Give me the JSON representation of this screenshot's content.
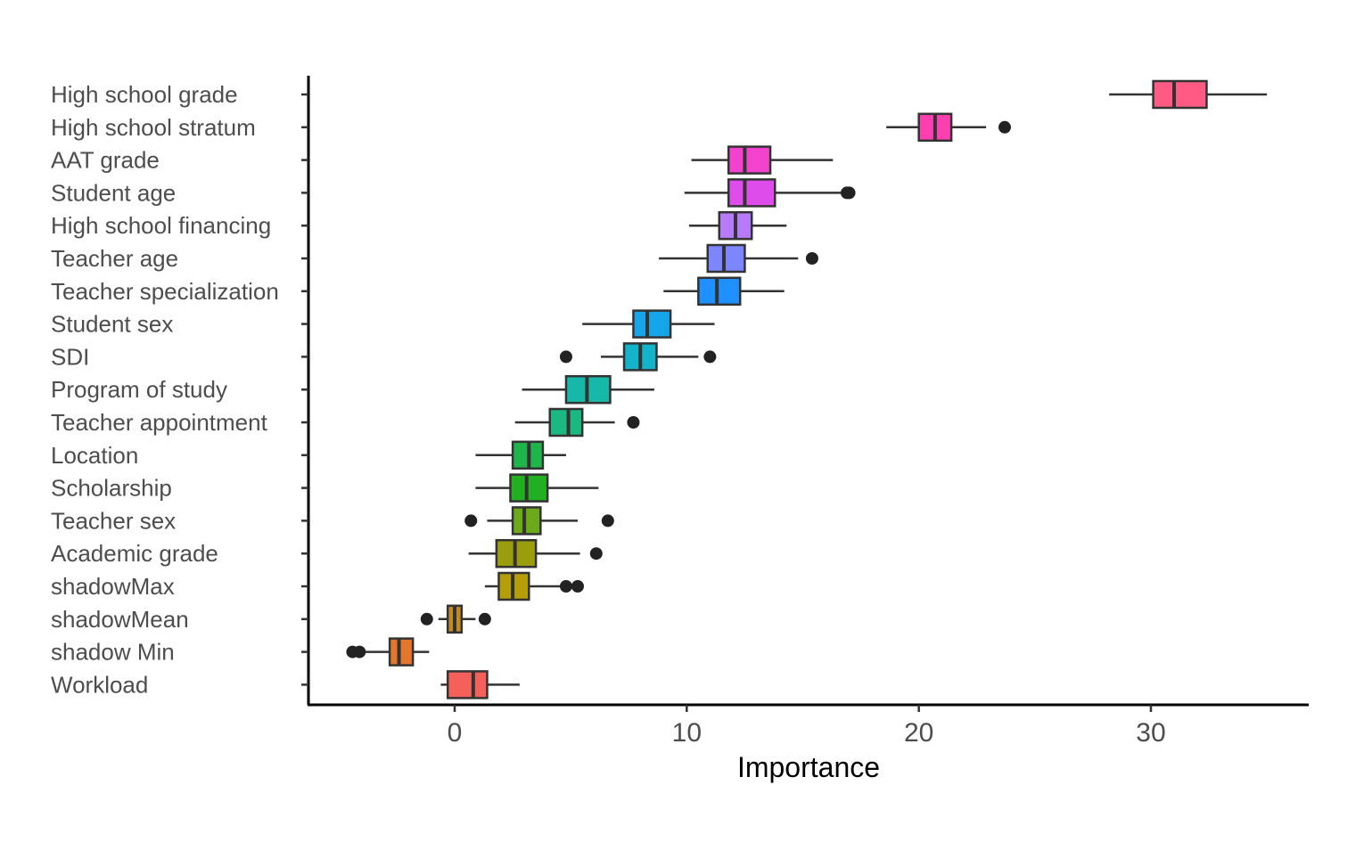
{
  "chart_data": {
    "type": "boxplot",
    "title": "",
    "xlabel": "Importance",
    "ylabel": "",
    "xlim": [
      -6.3,
      36.8
    ],
    "xticks": [
      0,
      10,
      20,
      30
    ],
    "xtick_labels": [
      "0",
      "10",
      "20",
      "30"
    ],
    "grid": false,
    "legend": "none",
    "categories": [
      "High school grade",
      "High school stratum",
      "AAT grade",
      "Student age",
      "High school financing",
      "Teacher age",
      "Teacher specialization",
      "Student sex",
      "SDI",
      "Program of study",
      "Teacher appointment",
      "Location",
      "Scholarship",
      "Teacher sex",
      "Academic grade",
      "shadowMax",
      "shadowMean",
      "shadow Min",
      "Workload"
    ],
    "boxes": [
      {
        "category": "High school grade",
        "whisker_low": 28.2,
        "q1": 30.1,
        "median": 31.0,
        "q3": 32.4,
        "whisker_high": 35.0,
        "outliers": [],
        "color": "#FF5A84"
      },
      {
        "category": "High school stratum",
        "whisker_low": 18.6,
        "q1": 20.0,
        "median": 20.7,
        "q3": 21.4,
        "whisker_high": 22.9,
        "outliers": [
          23.7
        ],
        "color": "#FF3FB0"
      },
      {
        "category": "AAT grade",
        "whisker_low": 10.2,
        "q1": 11.8,
        "median": 12.5,
        "q3": 13.6,
        "whisker_high": 16.3,
        "outliers": [],
        "color": "#F342CE"
      },
      {
        "category": "Student age",
        "whisker_low": 9.9,
        "q1": 11.8,
        "median": 12.5,
        "q3": 13.8,
        "whisker_high": 16.7,
        "outliers": [
          16.9,
          17.0
        ],
        "color": "#DF4CEC"
      },
      {
        "category": "High school financing",
        "whisker_low": 10.1,
        "q1": 11.4,
        "median": 12.1,
        "q3": 12.8,
        "whisker_high": 14.3,
        "outliers": [],
        "color": "#B77AF8"
      },
      {
        "category": "Teacher age",
        "whisker_low": 8.8,
        "q1": 10.9,
        "median": 11.6,
        "q3": 12.5,
        "whisker_high": 14.8,
        "outliers": [
          15.4
        ],
        "color": "#7D86FF"
      },
      {
        "category": "Teacher specialization",
        "whisker_low": 9.0,
        "q1": 10.5,
        "median": 11.3,
        "q3": 12.3,
        "whisker_high": 14.2,
        "outliers": [],
        "color": "#1E90FF"
      },
      {
        "category": "Student sex",
        "whisker_low": 5.5,
        "q1": 7.7,
        "median": 8.3,
        "q3": 9.3,
        "whisker_high": 11.2,
        "outliers": [],
        "color": "#16A5E8"
      },
      {
        "category": "SDI",
        "whisker_low": 6.3,
        "q1": 7.3,
        "median": 8.0,
        "q3": 8.7,
        "whisker_high": 10.5,
        "outliers": [
          4.8,
          11.0
        ],
        "color": "#13B3CC"
      },
      {
        "category": "Program of study",
        "whisker_low": 2.9,
        "q1": 4.8,
        "median": 5.7,
        "q3": 6.7,
        "whisker_high": 8.6,
        "outliers": [],
        "color": "#17B8A8"
      },
      {
        "category": "Teacher appointment",
        "whisker_low": 2.6,
        "q1": 4.1,
        "median": 4.9,
        "q3": 5.5,
        "whisker_high": 6.9,
        "outliers": [
          7.7
        ],
        "color": "#1BB882"
      },
      {
        "category": "Location",
        "whisker_low": 0.9,
        "q1": 2.5,
        "median": 3.2,
        "q3": 3.8,
        "whisker_high": 4.8,
        "outliers": [],
        "color": "#1EB54A"
      },
      {
        "category": "Scholarship",
        "whisker_low": 0.9,
        "q1": 2.4,
        "median": 3.1,
        "q3": 4.0,
        "whisker_high": 6.2,
        "outliers": [],
        "color": "#22B022"
      },
      {
        "category": "Teacher sex",
        "whisker_low": 1.4,
        "q1": 2.5,
        "median": 3.0,
        "q3": 3.7,
        "whisker_high": 5.3,
        "outliers": [
          0.7,
          6.6
        ],
        "color": "#6DAA1B"
      },
      {
        "category": "Academic grade",
        "whisker_low": 0.6,
        "q1": 1.8,
        "median": 2.6,
        "q3": 3.5,
        "whisker_high": 5.4,
        "outliers": [
          6.1
        ],
        "color": "#9A9E0C"
      },
      {
        "category": "shadowMax",
        "whisker_low": 1.3,
        "q1": 1.9,
        "median": 2.5,
        "q3": 3.2,
        "whisker_high": 4.9,
        "outliers": [
          4.8,
          5.3
        ],
        "color": "#B59E07"
      },
      {
        "category": "shadowMean",
        "whisker_low": -0.7,
        "q1": -0.3,
        "median": 0.0,
        "q3": 0.3,
        "whisker_high": 0.9,
        "outliers": [
          -1.2,
          1.3
        ],
        "color": "#C58A1E"
      },
      {
        "category": "shadow Min",
        "whisker_low": -3.9,
        "q1": -2.8,
        "median": -2.4,
        "q3": -1.8,
        "whisker_high": -1.1,
        "outliers": [
          -4.4,
          -4.1
        ],
        "color": "#E4762D"
      },
      {
        "category": "Workload",
        "whisker_low": -0.6,
        "q1": -0.3,
        "median": 0.8,
        "q3": 1.4,
        "whisker_high": 2.8,
        "outliers": [],
        "color": "#F5605A"
      }
    ]
  }
}
